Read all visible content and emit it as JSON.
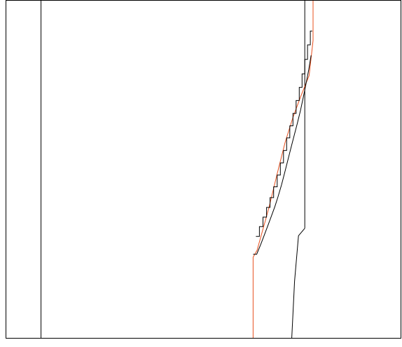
{
  "chart_data": {
    "type": "line",
    "title": "",
    "xlabel": "",
    "ylabel": "",
    "xlim": [
      0,
      100
    ],
    "ylim": [
      0,
      100
    ],
    "grid": false,
    "legend": "none",
    "colors": {
      "frame": "#000000",
      "orange": "#e8501e",
      "black": "#000000",
      "background": "#ffffff"
    },
    "vertical_reference_lines": [
      {
        "name": "left-vertical",
        "x": 8.8,
        "color": "#000000"
      },
      {
        "name": "right-vertical",
        "x": 75.7,
        "y_range": [
          32.5,
          100
        ],
        "color": "#000000"
      }
    ],
    "series": [
      {
        "color": "#e8501e",
        "x": [
          62.6,
          62.6,
          63.6,
          66.6,
          68.7,
          70.7,
          72.7,
          74.7,
          76.8,
          77.8,
          77.8
        ],
        "y": [
          0,
          23.9,
          26.0,
          38.6,
          48.7,
          57.9,
          65.4,
          71.7,
          77.8,
          88.2,
          100
        ]
      },
      {
        "color": "#000000",
        "x": [
          72.4,
          73.1,
          74.1,
          75.7
        ],
        "y": [
          0,
          16.8,
          30.3,
          32.5
        ]
      },
      {
        "color": "#000000",
        "style": "step",
        "x": [
          62.6,
          63.5,
          64.5,
          64.5,
          65.4,
          65.4,
          66.3,
          66.3,
          67.2,
          67.2,
          68.1,
          68.1,
          68.9,
          68.9,
          69.8,
          69.8,
          70.6,
          70.6,
          71.4,
          71.4,
          72.2,
          72.2,
          73.0,
          73.0,
          73.8,
          73.8,
          74.6,
          74.6,
          75.3,
          75.3,
          76.0,
          76.0,
          76.7,
          76.7,
          77.3
        ],
        "y": [
          24.8,
          24.8,
          27.6,
          27.6,
          30.4,
          30.4,
          33.2,
          33.2,
          36.0,
          36.0,
          38.9,
          38.9,
          41.8,
          41.8,
          45.4,
          45.4,
          49.0,
          49.0,
          52.7,
          52.7,
          56.4,
          56.4,
          60.0,
          60.0,
          63.6,
          63.6,
          67.4,
          67.4,
          71.2,
          71.2,
          75.3,
          75.3,
          79.5,
          79.5,
          83.8
        ]
      },
      {
        "color": "#000000",
        "style": "step",
        "x": [
          63.3,
          64.2,
          64.2,
          65.1,
          65.1,
          66.0,
          66.0,
          66.9,
          66.9,
          67.8,
          67.8,
          68.7,
          68.7,
          69.5,
          69.5,
          70.3,
          70.3,
          71.1,
          71.1,
          71.9,
          71.9,
          72.7,
          72.7,
          73.5,
          73.5,
          74.3,
          74.3,
          75.0,
          75.0,
          75.7,
          75.7,
          76.4,
          76.4,
          77.1,
          77.1,
          77.6
        ],
        "y": [
          30.1,
          30.1,
          33.0,
          33.0,
          35.8,
          35.8,
          38.7,
          38.7,
          41.6,
          41.6,
          44.8,
          44.8,
          48.3,
          48.3,
          51.9,
          51.9,
          55.6,
          55.6,
          59.3,
          59.3,
          62.9,
          62.9,
          66.6,
          66.6,
          70.4,
          70.4,
          74.3,
          74.3,
          78.3,
          78.3,
          82.6,
          82.6,
          86.9,
          86.9,
          91.0,
          91.0
        ]
      }
    ]
  }
}
